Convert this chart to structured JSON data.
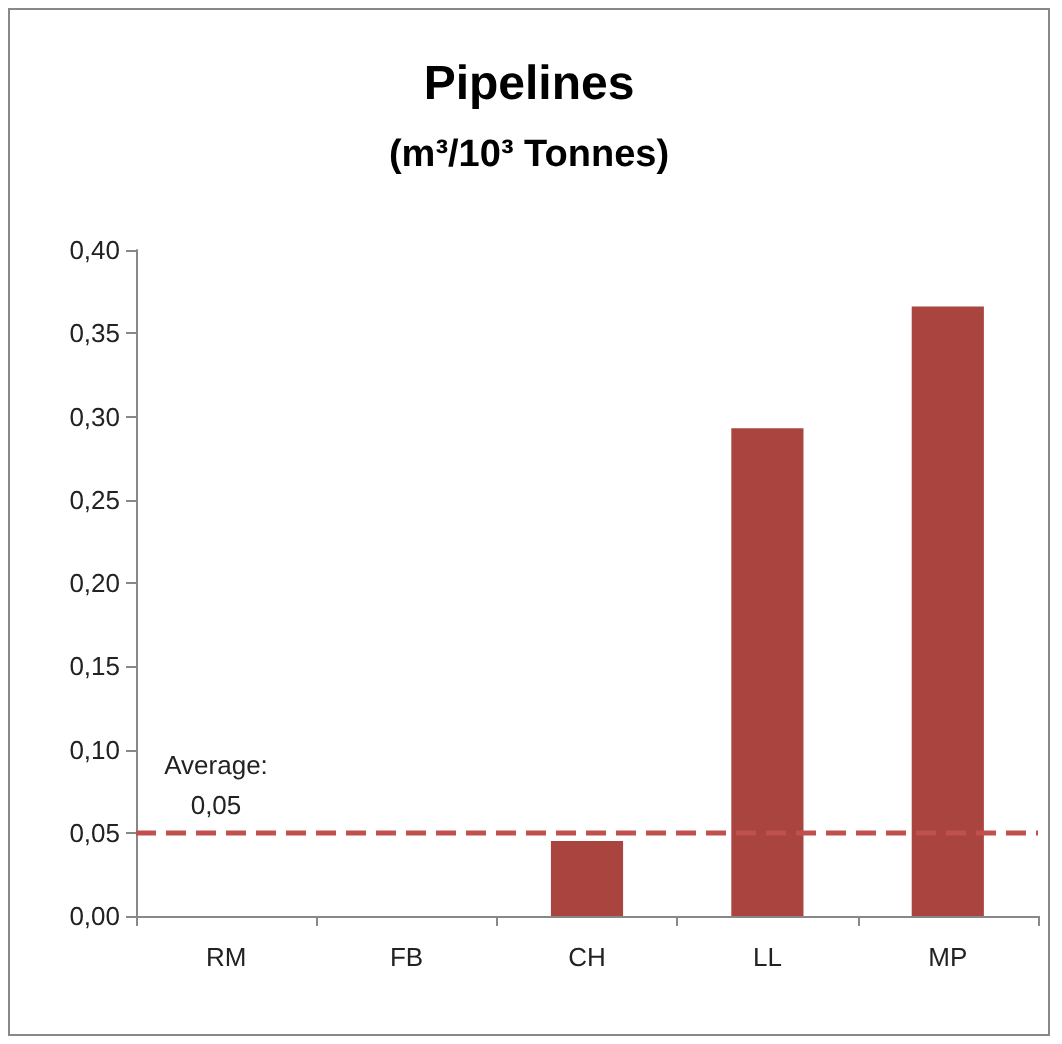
{
  "chart_data": {
    "type": "bar",
    "title": "Pipelines",
    "subtitle": "(m³/10³ Tonnes)",
    "categories": [
      "RM",
      "FB",
      "CH",
      "LL",
      "MP"
    ],
    "values": [
      0,
      0,
      0.045,
      0.293,
      0.366
    ],
    "color": "#a9443f",
    "ylim": [
      0,
      0.4
    ],
    "yticks": [
      {
        "value": 0,
        "label": "0,00"
      },
      {
        "value": 0.05,
        "label": "0,05"
      },
      {
        "value": 0.1,
        "label": "0,10"
      },
      {
        "value": 0.15,
        "label": "0,15"
      },
      {
        "value": 0.2,
        "label": "0,20"
      },
      {
        "value": 0.25,
        "label": "0,25"
      },
      {
        "value": 0.3,
        "label": "0,30"
      },
      {
        "value": 0.35,
        "label": "0,35"
      },
      {
        "value": 0.4,
        "label": "0,40"
      }
    ],
    "ref_lines": [
      {
        "axis": "y",
        "value": 0.05,
        "label": "Average: 0,05",
        "color": "#c0504d",
        "line_style": "dashed"
      }
    ],
    "grid": false
  }
}
